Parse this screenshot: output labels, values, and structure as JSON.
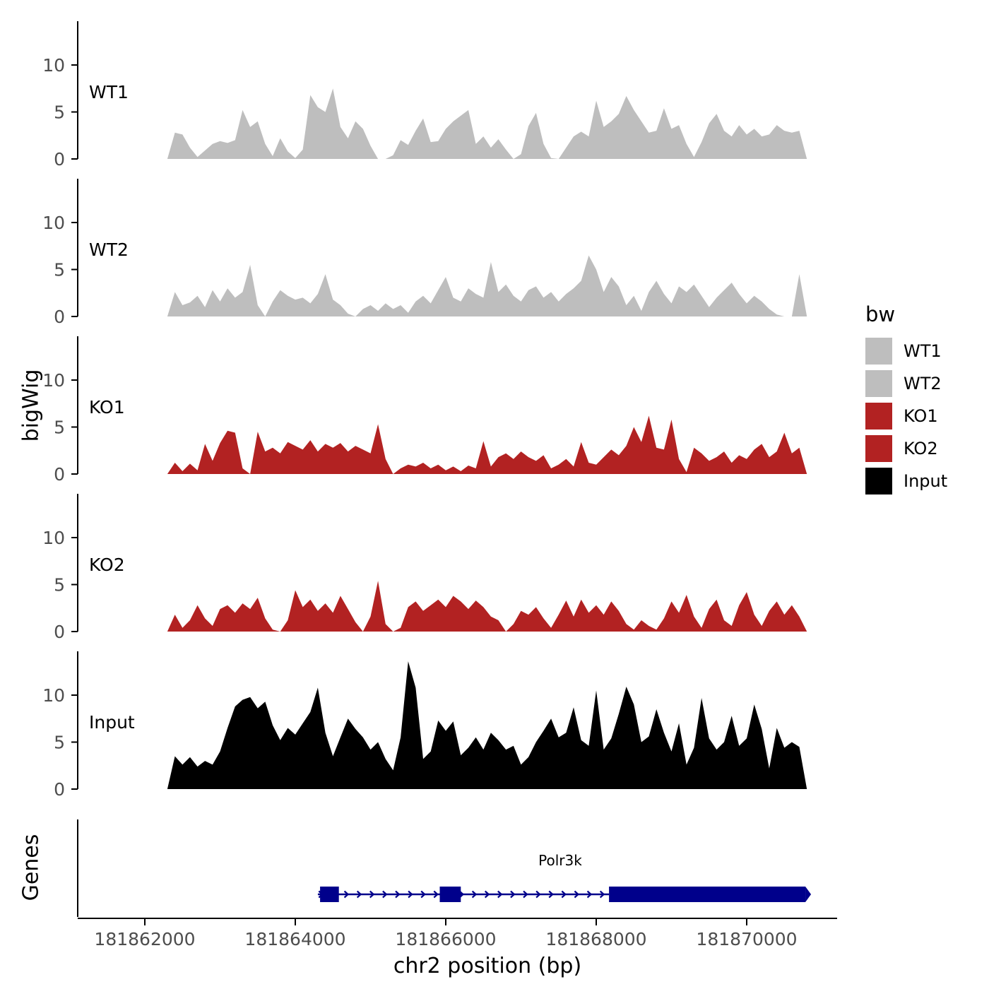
{
  "axes": {
    "y_label": "bigWig"
  },
  "x_axis": {
    "title": "chr2 position (bp)",
    "ticks": [
      {
        "value": 181862000,
        "label": "181862000"
      },
      {
        "value": 181864000,
        "label": "181864000"
      },
      {
        "value": 181866000,
        "label": "181866000"
      },
      {
        "value": 181868000,
        "label": "181868000"
      },
      {
        "value": 181870000,
        "label": "181870000"
      }
    ]
  },
  "genes_panel": {
    "label": "Genes",
    "gene": {
      "name": "Polr3k",
      "color": "#00008b",
      "strand": "+",
      "start": 181864300,
      "end": 181870780,
      "exons": [
        [
          181864330,
          181864580
        ],
        [
          181865920,
          181866200
        ],
        [
          181868170,
          181870780
        ]
      ]
    }
  },
  "legend": {
    "title": "bw",
    "items": [
      {
        "label": "WT1",
        "color": "#bebebe"
      },
      {
        "label": "WT2",
        "color": "#bebebe"
      },
      {
        "label": "KO1",
        "color": "#b22222"
      },
      {
        "label": "KO2",
        "color": "#b22222"
      },
      {
        "label": "Input",
        "color": "#000000"
      }
    ]
  },
  "chart_data": {
    "type": "area",
    "title": "",
    "xlabel": "chr2 position (bp)",
    "ylabel": "bigWig",
    "xlim": [
      181861100,
      181871200
    ],
    "ylim": [
      0,
      14
    ],
    "y_ticks": [
      0,
      5,
      10
    ],
    "x_start": 181862300,
    "x_step": 100,
    "tracks": [
      {
        "name": "WT1",
        "color": "#bebebe",
        "values": [
          0,
          2.8,
          2.6,
          1.2,
          0.2,
          0.9,
          1.6,
          1.9,
          1.7,
          2.0,
          5.2,
          3.4,
          4.0,
          1.6,
          0.3,
          2.2,
          0.8,
          0.1,
          1.0,
          6.8,
          5.5,
          5.0,
          7.5,
          3.4,
          2.2,
          4.0,
          3.2,
          1.4,
          0,
          0,
          0.4,
          2.0,
          1.5,
          3.0,
          4.3,
          1.8,
          1.9,
          3.2,
          4.0,
          4.6,
          5.2,
          1.6,
          2.4,
          1.2,
          2.1,
          1.0,
          0,
          0.5,
          3.5,
          4.9,
          1.6,
          0.1,
          0,
          1.2,
          2.4,
          2.9,
          2.4,
          6.2,
          3.4,
          4.0,
          4.8,
          6.7,
          5.2,
          4.0,
          2.8,
          3.0,
          5.4,
          3.2,
          3.6,
          1.6,
          0.2,
          1.8,
          3.8,
          4.8,
          3.0,
          2.4,
          3.6,
          2.6,
          3.2,
          2.4,
          2.6,
          3.6,
          3.0,
          2.8,
          3.0,
          0
        ]
      },
      {
        "name": "WT2",
        "color": "#bebebe",
        "values": [
          0,
          2.6,
          1.2,
          1.5,
          2.2,
          1.0,
          2.8,
          1.6,
          3.0,
          2.0,
          2.6,
          5.5,
          1.2,
          0,
          1.6,
          2.8,
          2.2,
          1.8,
          2.0,
          1.4,
          2.4,
          4.5,
          1.8,
          1.2,
          0.3,
          0,
          0.8,
          1.2,
          0.6,
          1.4,
          0.8,
          1.2,
          0.4,
          1.6,
          2.2,
          1.4,
          2.8,
          4.2,
          2.0,
          1.6,
          3.0,
          2.4,
          2.0,
          5.8,
          2.6,
          3.4,
          2.2,
          1.6,
          2.8,
          3.2,
          2.0,
          2.6,
          1.6,
          2.4,
          3.0,
          3.8,
          6.5,
          5.0,
          2.6,
          4.2,
          3.2,
          1.2,
          2.2,
          0.6,
          2.6,
          3.8,
          2.4,
          1.4,
          3.2,
          2.6,
          3.4,
          2.2,
          1.0,
          2.0,
          2.8,
          3.6,
          2.4,
          1.4,
          2.2,
          1.6,
          0.8,
          0.2,
          0,
          0,
          4.5,
          0
        ]
      },
      {
        "name": "KO1",
        "color": "#b22222",
        "values": [
          0,
          1.2,
          0.3,
          1.1,
          0.4,
          3.2,
          1.4,
          3.3,
          4.6,
          4.4,
          0.6,
          0,
          4.5,
          2.4,
          2.8,
          2.2,
          3.4,
          3.0,
          2.6,
          3.6,
          2.4,
          3.2,
          2.8,
          3.3,
          2.4,
          3.0,
          2.6,
          2.2,
          5.3,
          1.6,
          0,
          0.6,
          1.0,
          0.8,
          1.2,
          0.6,
          1.0,
          0.4,
          0.8,
          0.3,
          0.9,
          0.6,
          3.5,
          0.8,
          1.8,
          2.2,
          1.6,
          2.4,
          1.8,
          1.4,
          2.0,
          0.6,
          1.0,
          1.6,
          0.8,
          3.4,
          1.2,
          1.0,
          1.8,
          2.6,
          2.0,
          3.0,
          5.0,
          3.4,
          6.2,
          2.8,
          2.6,
          5.8,
          1.6,
          0.2,
          2.8,
          2.2,
          1.4,
          1.8,
          2.4,
          1.2,
          2.0,
          1.6,
          2.6,
          3.2,
          1.8,
          2.4,
          4.4,
          2.2,
          2.8,
          0
        ]
      },
      {
        "name": "KO2",
        "color": "#b22222",
        "values": [
          0,
          1.8,
          0.4,
          1.2,
          2.8,
          1.4,
          0.6,
          2.4,
          2.8,
          2.0,
          3.0,
          2.4,
          3.6,
          1.4,
          0.2,
          0,
          1.2,
          4.4,
          2.6,
          3.4,
          2.2,
          3.0,
          2.0,
          3.8,
          2.4,
          1.0,
          0,
          1.6,
          5.4,
          0.8,
          0,
          0.4,
          2.6,
          3.2,
          2.2,
          2.8,
          3.4,
          2.6,
          3.8,
          3.2,
          2.4,
          3.3,
          2.6,
          1.6,
          1.2,
          0,
          0.8,
          2.2,
          1.8,
          2.6,
          1.4,
          0.4,
          1.8,
          3.3,
          1.6,
          3.4,
          2.0,
          2.8,
          1.8,
          3.2,
          2.2,
          0.8,
          0.2,
          1.2,
          0.6,
          0.2,
          1.4,
          3.2,
          2.0,
          3.9,
          1.6,
          0.4,
          2.4,
          3.4,
          1.2,
          0.6,
          2.8,
          4.2,
          1.8,
          0.6,
          2.2,
          3.2,
          1.8,
          2.8,
          1.6,
          0
        ]
      },
      {
        "name": "Input",
        "color": "#000000",
        "values": [
          0,
          3.5,
          2.6,
          3.4,
          2.4,
          3.0,
          2.6,
          4.0,
          6.5,
          8.8,
          9.5,
          9.8,
          8.6,
          9.3,
          6.8,
          5.2,
          6.5,
          5.8,
          7.0,
          8.2,
          10.8,
          6.0,
          3.5,
          5.5,
          7.5,
          6.4,
          5.5,
          4.2,
          5.0,
          3.2,
          2.0,
          5.5,
          13.6,
          10.8,
          3.2,
          4.0,
          7.3,
          6.2,
          7.2,
          3.6,
          4.4,
          5.5,
          4.2,
          6.0,
          5.2,
          4.2,
          4.6,
          2.6,
          3.4,
          5.0,
          6.2,
          7.5,
          5.5,
          6.0,
          8.7,
          5.2,
          4.6,
          10.5,
          4.2,
          5.4,
          8.0,
          10.9,
          9.0,
          5.0,
          5.6,
          8.5,
          6.0,
          4.0,
          7.0,
          2.6,
          4.4,
          9.7,
          5.4,
          4.2,
          5.0,
          7.8,
          4.6,
          5.4,
          9.0,
          6.4,
          2.2,
          6.5,
          4.4,
          5.0,
          4.5,
          0
        ]
      }
    ]
  }
}
